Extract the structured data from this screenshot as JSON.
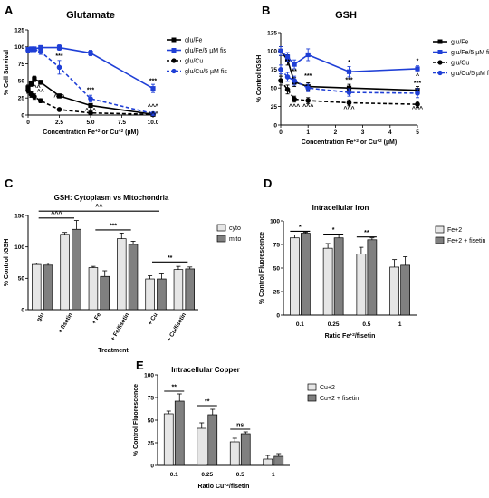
{
  "panels": [
    {
      "letter": "A",
      "chart_data": {
        "type": "line",
        "title": "Glutamate",
        "ylabel": "% Cell Survival",
        "xlabel": "Concentration Fe^+2 or Cu^+2 (µM)",
        "xlabel_parts": [
          "Concentration Fe",
          "+2",
          " or Cu",
          "+2",
          " (µM)"
        ],
        "xlim": [
          0,
          10
        ],
        "ylim": [
          0,
          125
        ],
        "xticks": [
          0,
          2.5,
          5.0,
          7.5,
          10.0
        ],
        "xtick_labels": [
          "0",
          "2.5",
          "5.0",
          "7.5",
          "10.0"
        ],
        "yticks": [
          0,
          25,
          50,
          75,
          100,
          125
        ],
        "series": [
          {
            "name": "glu/Fe",
            "color": "#000000",
            "dashed": false,
            "marker": "square",
            "x": [
              0,
              0.25,
              0.5,
              1,
              2.5,
              5,
              10
            ],
            "y": [
              40,
              46,
              53,
              48,
              28,
              14,
              1
            ],
            "err": [
              4,
              4,
              4,
              3,
              3,
              2,
              1
            ]
          },
          {
            "name": "glu/Fe/5 µM fis",
            "color": "#1f3fd6",
            "dashed": false,
            "marker": "square",
            "x": [
              0,
              0.25,
              0.5,
              1,
              2.5,
              5,
              10
            ],
            "y": [
              96,
              97,
              97,
              99,
              99,
              91,
              39
            ],
            "err": [
              3,
              3,
              3,
              3,
              4,
              4,
              6
            ]
          },
          {
            "name": "glu/Cu",
            "color": "#000000",
            "dashed": true,
            "marker": "circle",
            "x": [
              0,
              0.25,
              0.5,
              1,
              2.5,
              5,
              10
            ],
            "y": [
              36,
              30,
              27,
              21,
              8,
              3,
              1
            ],
            "err": [
              4,
              4,
              4,
              3,
              2,
              1,
              1
            ]
          },
          {
            "name": "glu/Cu/5 µM fis",
            "color": "#1f3fd6",
            "dashed": true,
            "marker": "circle",
            "x": [
              0,
              0.25,
              0.5,
              1,
              2.5,
              5,
              10
            ],
            "y": [
              95,
              96,
              96,
              93,
              70,
              24,
              2
            ],
            "err": [
              3,
              3,
              3,
              4,
              10,
              5,
              1
            ]
          }
        ],
        "annotations": [
          {
            "x": 2.5,
            "y": 84,
            "text": "***"
          },
          {
            "x": 0.7,
            "y": 37,
            "text": "^^"
          },
          {
            "x": 1.0,
            "y": 31,
            "text": "^^"
          },
          {
            "x": 2.5,
            "y": 23,
            "text": "^^^"
          },
          {
            "x": 5.0,
            "y": 34,
            "text": "***"
          },
          {
            "x": 5.0,
            "y": 3,
            "text": "^^^"
          },
          {
            "x": 10.0,
            "y": 47,
            "text": "***"
          },
          {
            "x": 10.0,
            "y": 9,
            "text": "^^^"
          },
          {
            "x": 10.0,
            "y": -2,
            "text": "^^^"
          }
        ]
      }
    },
    {
      "letter": "B",
      "chart_data": {
        "type": "line",
        "title": "GSH",
        "ylabel": "% Control tGSH",
        "xlabel": "Concentration Fe^+2 or Cu^+2 (µM)",
        "xlabel_parts": [
          "Concentration Fe",
          "+2",
          " or Cu",
          "+2",
          " (µM)"
        ],
        "xlim": [
          0,
          5
        ],
        "ylim": [
          0,
          125
        ],
        "xticks": [
          0,
          1,
          2,
          3,
          4,
          5
        ],
        "xtick_labels": [
          "0",
          "1",
          "2",
          "3",
          "4",
          "5"
        ],
        "yticks": [
          0,
          25,
          50,
          75,
          100,
          125
        ],
        "series": [
          {
            "name": "glu/Fe",
            "color": "#000000",
            "dashed": false,
            "marker": "square",
            "x": [
              0,
              0.25,
              0.5,
              1,
              2.5,
              5
            ],
            "y": [
              100,
              88,
              58,
              52,
              50,
              47
            ],
            "err": [
              6,
              7,
              6,
              5,
              5,
              5
            ]
          },
          {
            "name": "glu/Fe/5 µM fis",
            "color": "#1f3fd6",
            "dashed": false,
            "marker": "square",
            "x": [
              0,
              0.25,
              0.5,
              1,
              2.5,
              5
            ],
            "y": [
              100,
              92,
              82,
              95,
              72,
              76
            ],
            "err": [
              6,
              6,
              6,
              8,
              7,
              4
            ]
          },
          {
            "name": "glu/Cu",
            "color": "#000000",
            "dashed": true,
            "marker": "circle",
            "x": [
              0,
              0.25,
              0.5,
              1,
              2.5,
              5
            ],
            "y": [
              60,
              48,
              35,
              33,
              30,
              28
            ],
            "err": [
              6,
              6,
              4,
              4,
              4,
              4
            ]
          },
          {
            "name": "glu/Cu/5 µM fis",
            "color": "#1f3fd6",
            "dashed": true,
            "marker": "circle",
            "x": [
              0,
              0.25,
              0.5,
              1,
              2.5,
              5
            ],
            "y": [
              75,
              65,
              60,
              50,
              44,
              43
            ],
            "err": [
              6,
              6,
              6,
              5,
              5,
              6
            ]
          }
        ],
        "annotations": [
          {
            "x": 0.5,
            "y": 70,
            "text": "**"
          },
          {
            "x": 1.0,
            "y": 64,
            "text": "***"
          },
          {
            "x": 0.5,
            "y": 22,
            "text": "^^^"
          },
          {
            "x": 1.0,
            "y": 22,
            "text": "^^^"
          },
          {
            "x": 2.5,
            "y": 82,
            "text": "*"
          },
          {
            "x": 2.5,
            "y": 58,
            "text": "***"
          },
          {
            "x": 2.5,
            "y": 19,
            "text": "^^^"
          },
          {
            "x": 5.0,
            "y": 84,
            "text": "*"
          },
          {
            "x": 5.0,
            "y": 64,
            "text": "^"
          },
          {
            "x": 5.0,
            "y": 54,
            "text": "***"
          },
          {
            "x": 5.0,
            "y": 19,
            "text": "^^^"
          }
        ]
      }
    },
    {
      "letter": "C",
      "chart_data": {
        "type": "bar",
        "title": "GSH: Cytoplasm vs Mitochondria",
        "ylabel": "% Control tGSH",
        "xlabel": "Treatment",
        "categories": [
          "glu",
          "+ fisetin",
          "+ Fe",
          "+ Fe/fisetin",
          "+ Cu",
          "+ Cu/fisetin"
        ],
        "ylim": [
          0,
          150
        ],
        "yticks": [
          0,
          50,
          100,
          150
        ],
        "series": [
          {
            "name": "cyto",
            "color": "#e6e6e6",
            "values": [
              72,
              120,
              67,
              113,
              49,
              64
            ],
            "err": [
              2,
              3,
              2,
              9,
              5,
              5
            ]
          },
          {
            "name": "mito",
            "color": "#808080",
            "values": [
              71,
              128,
              53,
              104,
              49,
              65
            ],
            "err": [
              3,
              14,
              9,
              5,
              8,
              3
            ]
          }
        ],
        "brackets": [
          {
            "from": 0,
            "to": 4,
            "level": 157,
            "text": "^^"
          },
          {
            "from": 0,
            "to": 1,
            "level": 146,
            "text": "^^^"
          },
          {
            "from": 2,
            "to": 3,
            "level": 127,
            "text": "***"
          },
          {
            "from": 4,
            "to": 5,
            "level": 76,
            "text": "**"
          }
        ]
      }
    },
    {
      "letter": "D",
      "chart_data": {
        "type": "bar",
        "title": "Intracellular Iron",
        "ylabel": "% Control Fluorescence",
        "xlabel": "Ratio Fe^+2/fisetin",
        "xlabel_parts": [
          "Ratio Fe",
          "+2",
          "/fisetin"
        ],
        "categories": [
          "0.1",
          "0.25",
          "0.5",
          "1"
        ],
        "ylim": [
          0,
          100
        ],
        "yticks": [
          0,
          25,
          50,
          75,
          100
        ],
        "series": [
          {
            "name": "Fe+2",
            "color": "#e6e6e6",
            "values": [
              82,
              71,
              65,
              51
            ],
            "err": [
              3,
              5,
              7,
              8
            ]
          },
          {
            "name": "Fe+2 + fisetin",
            "color": "#808080",
            "values": [
              87,
              82,
              80,
              53
            ],
            "err": [
              1,
              3,
              2,
              9
            ]
          }
        ],
        "brackets": [
          {
            "from": 0,
            "to": 0,
            "level": 89,
            "text": "*"
          },
          {
            "from": 1,
            "to": 1,
            "level": 86,
            "text": "*"
          },
          {
            "from": 2,
            "to": 2,
            "level": 83,
            "text": "**"
          }
        ]
      }
    },
    {
      "letter": "E",
      "chart_data": {
        "type": "bar",
        "title": "Intracellular Copper",
        "ylabel": "% Control Fluorescence",
        "xlabel": "Ratio Cu^+2/fisetin",
        "xlabel_parts": [
          "Ratio Cu",
          "+2",
          "/fisetin"
        ],
        "categories": [
          "0.1",
          "0.25",
          "0.5",
          "1"
        ],
        "ylim": [
          0,
          100
        ],
        "yticks": [
          0,
          25,
          50,
          75,
          100
        ],
        "series": [
          {
            "name": "Cu+2",
            "color": "#e6e6e6",
            "values": [
              57,
              41,
              26,
              7
            ],
            "err": [
              3,
              6,
              4,
              4
            ]
          },
          {
            "name": "Cu+2 + fisetin",
            "color": "#808080",
            "values": [
              71,
              56,
              35,
              10
            ],
            "err": [
              8,
              6,
              2,
              3
            ]
          }
        ],
        "brackets": [
          {
            "from": 0,
            "to": 0,
            "level": 82,
            "text": "**"
          },
          {
            "from": 1,
            "to": 1,
            "level": 66,
            "text": "**"
          },
          {
            "from": 2,
            "to": 2,
            "level": 40,
            "text": "ns"
          }
        ]
      }
    }
  ]
}
